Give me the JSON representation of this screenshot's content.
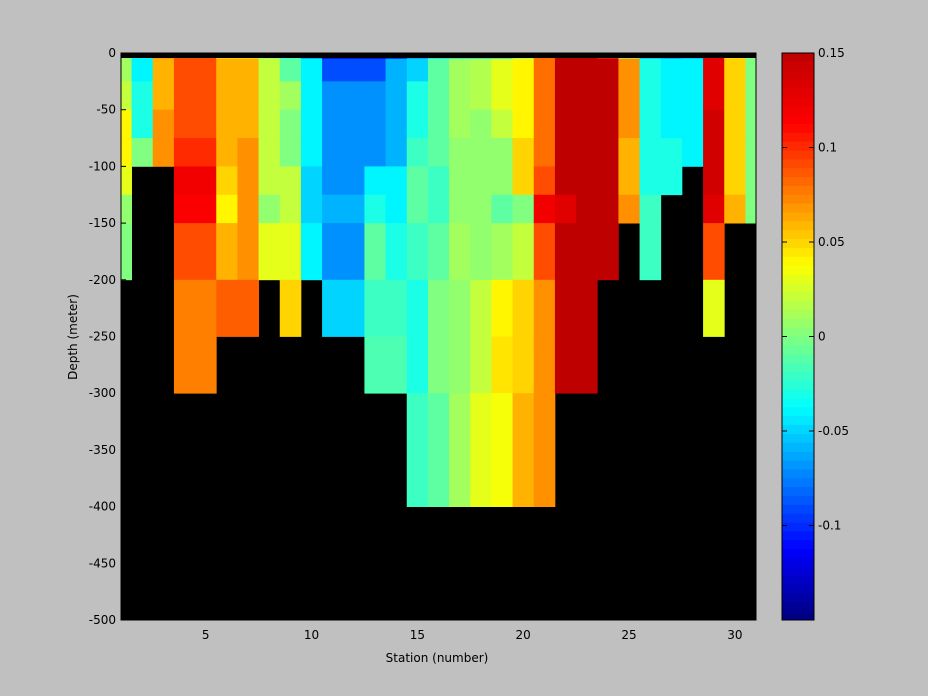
{
  "chart_data": {
    "type": "heatmap",
    "xlabel": "Station (number)",
    "ylabel": "Depth (meter)",
    "xlim": [
      1,
      31
    ],
    "ylim": [
      -500,
      0
    ],
    "xticks": [
      5,
      10,
      15,
      20,
      25,
      30
    ],
    "yticks": [
      0,
      -50,
      -100,
      -150,
      -200,
      -250,
      -300,
      -350,
      -400,
      -450,
      -500
    ],
    "missing_color": "#000000",
    "colorbar": {
      "colormap": "jet",
      "clim": [
        -0.15,
        0.15
      ],
      "ticks": [
        0.15,
        0.1,
        0.05,
        0,
        -0.05,
        -0.1
      ],
      "tick_labels": [
        "0.15",
        "0.1",
        "0.05",
        "0",
        "-0.05",
        "-0.1"
      ]
    },
    "depth_bins_top": [
      0,
      -5,
      -25,
      -50,
      -75,
      -100,
      -125,
      -150,
      -200,
      -250,
      -300,
      -400,
      -500
    ],
    "stations": [
      {
        "station": 1,
        "values": [
          0.0,
          0.01,
          0.02,
          0.04,
          0.04,
          0.03,
          0.005,
          0.0
        ]
      },
      {
        "station": 2,
        "values": [
          -0.04,
          -0.04,
          -0.03,
          -0.03,
          0.0
        ]
      },
      {
        "station": 3,
        "values": [
          0.07,
          0.06,
          0.06,
          0.07,
          0.07
        ]
      },
      {
        "station": 4,
        "values": [
          0.09,
          0.09,
          0.09,
          0.09,
          0.1,
          0.12,
          0.115,
          0.09,
          0.075,
          0.075
        ]
      },
      {
        "station": 5,
        "values": [
          0.09,
          0.09,
          0.09,
          0.09,
          0.1,
          0.12,
          0.115,
          0.09,
          0.075,
          0.075
        ]
      },
      {
        "station": 6,
        "values": [
          0.05,
          0.06,
          0.06,
          0.06,
          0.06,
          0.05,
          0.04,
          0.06,
          0.085
        ]
      },
      {
        "station": 7,
        "values": [
          0.05,
          0.06,
          0.06,
          0.06,
          0.07,
          0.07,
          0.07,
          0.07,
          0.085
        ]
      },
      {
        "station": 8,
        "values": [
          0.0,
          0.02,
          0.02,
          0.02,
          0.02,
          0.02,
          0.005,
          0.03
        ]
      },
      {
        "station": 9,
        "values": [
          -0.03,
          -0.01,
          0.01,
          0.0,
          0.0,
          0.02,
          0.02,
          0.03,
          0.05
        ]
      },
      {
        "station": 10,
        "values": [
          -0.07,
          -0.04,
          -0.04,
          -0.04,
          -0.04,
          -0.05,
          -0.05,
          -0.04
        ]
      },
      {
        "station": 11,
        "values": [
          -0.12,
          -0.09,
          -0.07,
          -0.07,
          -0.07,
          -0.07,
          -0.06,
          -0.07,
          -0.05
        ]
      },
      {
        "station": 12,
        "values": [
          -0.12,
          -0.09,
          -0.07,
          -0.07,
          -0.07,
          -0.07,
          -0.06,
          -0.07,
          -0.05
        ]
      },
      {
        "station": 13,
        "values": [
          -0.13,
          -0.09,
          -0.07,
          -0.07,
          -0.07,
          -0.04,
          -0.03,
          -0.01,
          -0.02,
          -0.015
        ]
      },
      {
        "station": 14,
        "values": [
          -0.11,
          -0.06,
          -0.06,
          -0.06,
          -0.06,
          -0.04,
          -0.04,
          -0.03,
          -0.02,
          -0.015
        ]
      },
      {
        "station": 15,
        "values": [
          -0.07,
          -0.05,
          -0.03,
          -0.03,
          -0.02,
          -0.01,
          -0.01,
          -0.02,
          -0.03,
          -0.03,
          -0.02
        ]
      },
      {
        "station": 16,
        "values": [
          -0.05,
          -0.01,
          -0.01,
          -0.01,
          -0.01,
          -0.02,
          -0.02,
          -0.01,
          0.0,
          0.0,
          -0.01
        ]
      },
      {
        "station": 17,
        "values": [
          -0.05,
          0.01,
          0.01,
          0.01,
          0.005,
          0.005,
          0.005,
          0.01,
          0.005,
          0.005,
          0.01
        ]
      },
      {
        "station": 18,
        "values": [
          -0.05,
          0.015,
          0.015,
          0.005,
          0.005,
          0.005,
          0.005,
          0.005,
          0.02,
          0.02,
          0.03
        ]
      },
      {
        "station": 19,
        "values": [
          -0.05,
          0.03,
          0.03,
          0.02,
          0.005,
          0.005,
          -0.01,
          0.01,
          0.04,
          0.045,
          0.035
        ]
      },
      {
        "station": 20,
        "values": [
          0.0,
          0.04,
          0.04,
          0.04,
          0.05,
          0.05,
          0.0,
          0.02,
          0.05,
          0.05,
          0.06
        ]
      },
      {
        "station": 21,
        "values": [
          0.08,
          0.08,
          0.08,
          0.08,
          0.08,
          0.09,
          0.12,
          0.09,
          0.07,
          0.07,
          0.07
        ]
      },
      {
        "station": 22,
        "values": [
          0.15,
          0.15,
          0.15,
          0.15,
          0.15,
          0.15,
          0.13,
          0.15,
          0.15,
          0.15
        ]
      },
      {
        "station": 23,
        "values": [
          0.15,
          0.15,
          0.15,
          0.15,
          0.15,
          0.15,
          0.15,
          0.15,
          0.15,
          0.15
        ]
      },
      {
        "station": 24,
        "values": [
          0.1,
          0.15,
          0.15,
          0.15,
          0.15,
          0.15,
          0.15,
          0.15
        ]
      },
      {
        "station": 25,
        "values": [
          0.0,
          0.07,
          0.07,
          0.07,
          0.06,
          0.06,
          0.07
        ]
      },
      {
        "station": 26,
        "values": [
          -0.06,
          -0.03,
          -0.03,
          -0.03,
          -0.03,
          -0.03,
          -0.02,
          -0.02
        ]
      },
      {
        "station": 27,
        "values": [
          -0.07,
          -0.04,
          -0.04,
          -0.04,
          -0.03,
          -0.03
        ]
      },
      {
        "station": 28,
        "values": [
          -0.06,
          -0.04,
          -0.04,
          -0.04,
          -0.04
        ]
      },
      {
        "station": 29,
        "values": [
          0.12,
          0.13,
          0.13,
          0.14,
          0.14,
          0.14,
          0.13,
          0.09,
          0.03
        ]
      },
      {
        "station": 30,
        "values": [
          0.05,
          0.05,
          0.05,
          0.05,
          0.05,
          0.05,
          0.06
        ]
      },
      {
        "station": 31,
        "values": [
          0.0,
          0.0,
          0.0,
          0.0,
          0.0,
          0.0,
          0.0
        ]
      }
    ]
  }
}
